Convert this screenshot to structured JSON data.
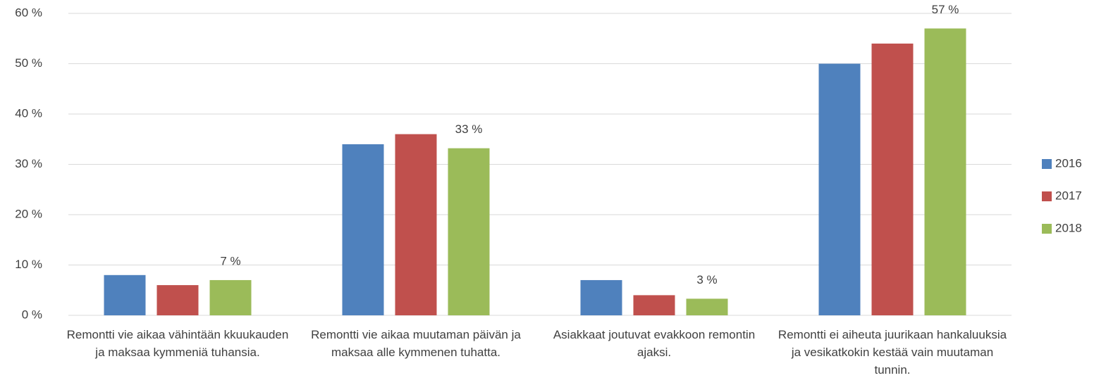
{
  "chart_data": {
    "type": "bar",
    "categories": [
      "Remontti vie aikaa vähintään kkuukauden ja maksaa kymmeniä tuhansia.",
      "Remontti vie aikaa muutaman päivän ja maksaa alle kymmenen tuhatta.",
      "Asiakkaat joutuvat evakkoon remontin ajaksi.",
      "Remontti ei aiheuta juurikaan hankaluuksia ja vesikatkokin kestää vain muutaman tunnin."
    ],
    "series": [
      {
        "name": "2016",
        "color": "#4f81bd",
        "values": [
          8,
          34,
          7,
          50
        ]
      },
      {
        "name": "2017",
        "color": "#c0504d",
        "values": [
          6,
          36,
          4,
          54
        ]
      },
      {
        "name": "2018",
        "color": "#9bbb59",
        "values": [
          7,
          33.2,
          3.3,
          57
        ],
        "value_labels": [
          "7 %",
          "33 %",
          "3 %",
          "57 %"
        ]
      }
    ],
    "ylim": [
      0,
      60
    ],
    "yticks": [
      {
        "value": 0,
        "label": "0 %"
      },
      {
        "value": 10,
        "label": "10 %"
      },
      {
        "value": 20,
        "label": "20 %"
      },
      {
        "value": 30,
        "label": "30 %"
      },
      {
        "value": 40,
        "label": "40 %"
      },
      {
        "value": 50,
        "label": "50 %"
      },
      {
        "value": 60,
        "label": "60 %"
      }
    ],
    "grid": true,
    "legend": "right"
  }
}
